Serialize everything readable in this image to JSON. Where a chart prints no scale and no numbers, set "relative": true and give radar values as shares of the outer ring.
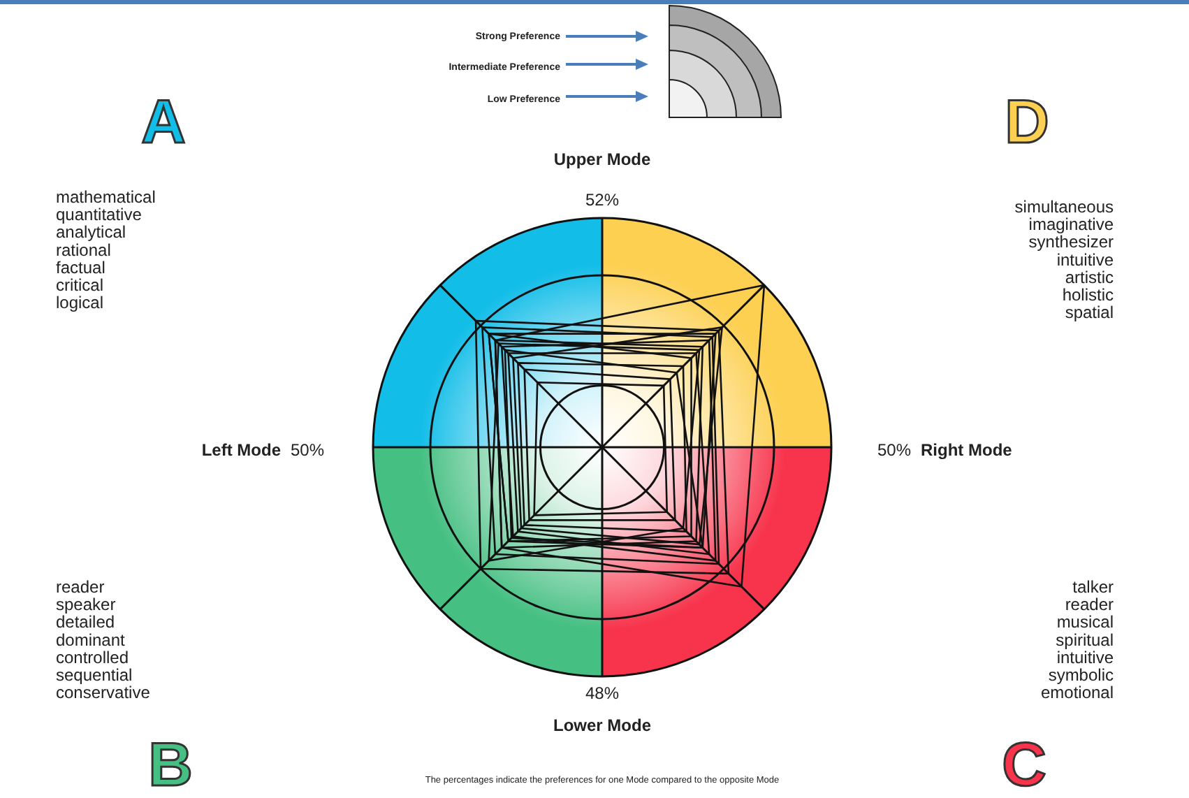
{
  "chart_data": {
    "type": "radar",
    "relative": true,
    "grid": true,
    "categories": [
      "D",
      "C",
      "B",
      "A"
    ],
    "colors": [
      "#fdd052",
      "#f7344c",
      "#45bf82",
      "#12bde8"
    ],
    "marker": "none",
    "series": [
      {
        "color": "#111111",
        "values": [
          1.0,
          0.86,
          0.62,
          0.66
        ]
      },
      {
        "color": "#111111",
        "values": [
          0.72,
          0.78,
          0.75,
          0.78
        ]
      },
      {
        "color": "#111111",
        "values": [
          0.7,
          0.62,
          0.58,
          0.7
        ]
      },
      {
        "color": "#111111",
        "values": [
          0.66,
          0.7,
          0.55,
          0.62
        ]
      },
      {
        "color": "#111111",
        "values": [
          0.62,
          0.58,
          0.62,
          0.66
        ]
      },
      {
        "color": "#111111",
        "values": [
          0.58,
          0.66,
          0.52,
          0.58
        ]
      },
      {
        "color": "#111111",
        "values": [
          0.55,
          0.55,
          0.58,
          0.7
        ]
      },
      {
        "color": "#111111",
        "values": [
          0.74,
          0.6,
          0.5,
          0.55
        ]
      },
      {
        "color": "#111111",
        "values": [
          0.5,
          0.52,
          0.48,
          0.52
        ]
      },
      {
        "color": "#111111",
        "values": [
          0.46,
          0.62,
          0.56,
          0.6
        ]
      },
      {
        "color": "#111111",
        "values": [
          0.42,
          0.45,
          0.45,
          0.48
        ]
      },
      {
        "color": "#111111",
        "values": [
          0.38,
          0.4,
          0.42,
          0.4
        ]
      },
      {
        "color": "#111111",
        "values": [
          0.68,
          0.72,
          0.66,
          0.74
        ]
      },
      {
        "color": "#111111",
        "values": [
          0.6,
          0.5,
          0.7,
          0.64
        ]
      }
    ],
    "annotations": [
      "Strong Preference",
      "Intermediate Preference",
      "Low Preference",
      "Upper Mode",
      "52%",
      "Lower Mode",
      "48%",
      "Left Mode",
      "50%",
      "Right Mode",
      "50%",
      "simultaneous\nimaginative\nsynthesizer\nintuitive\nartistic\nholistic\nspatial",
      "talker\nreader\nmusical\nspiritual\nintuitive\nsymbolic\nemotional",
      "reader\nspeaker\ndetailed\ndominant\ncontrolled\nsequential\nconservative",
      "mathematical\nquantitative\nanalytical\nrational\nfactual\ncritical\nlogical",
      "The percentages indicate the preferences for one Mode compared to the opposite Mode"
    ]
  }
}
